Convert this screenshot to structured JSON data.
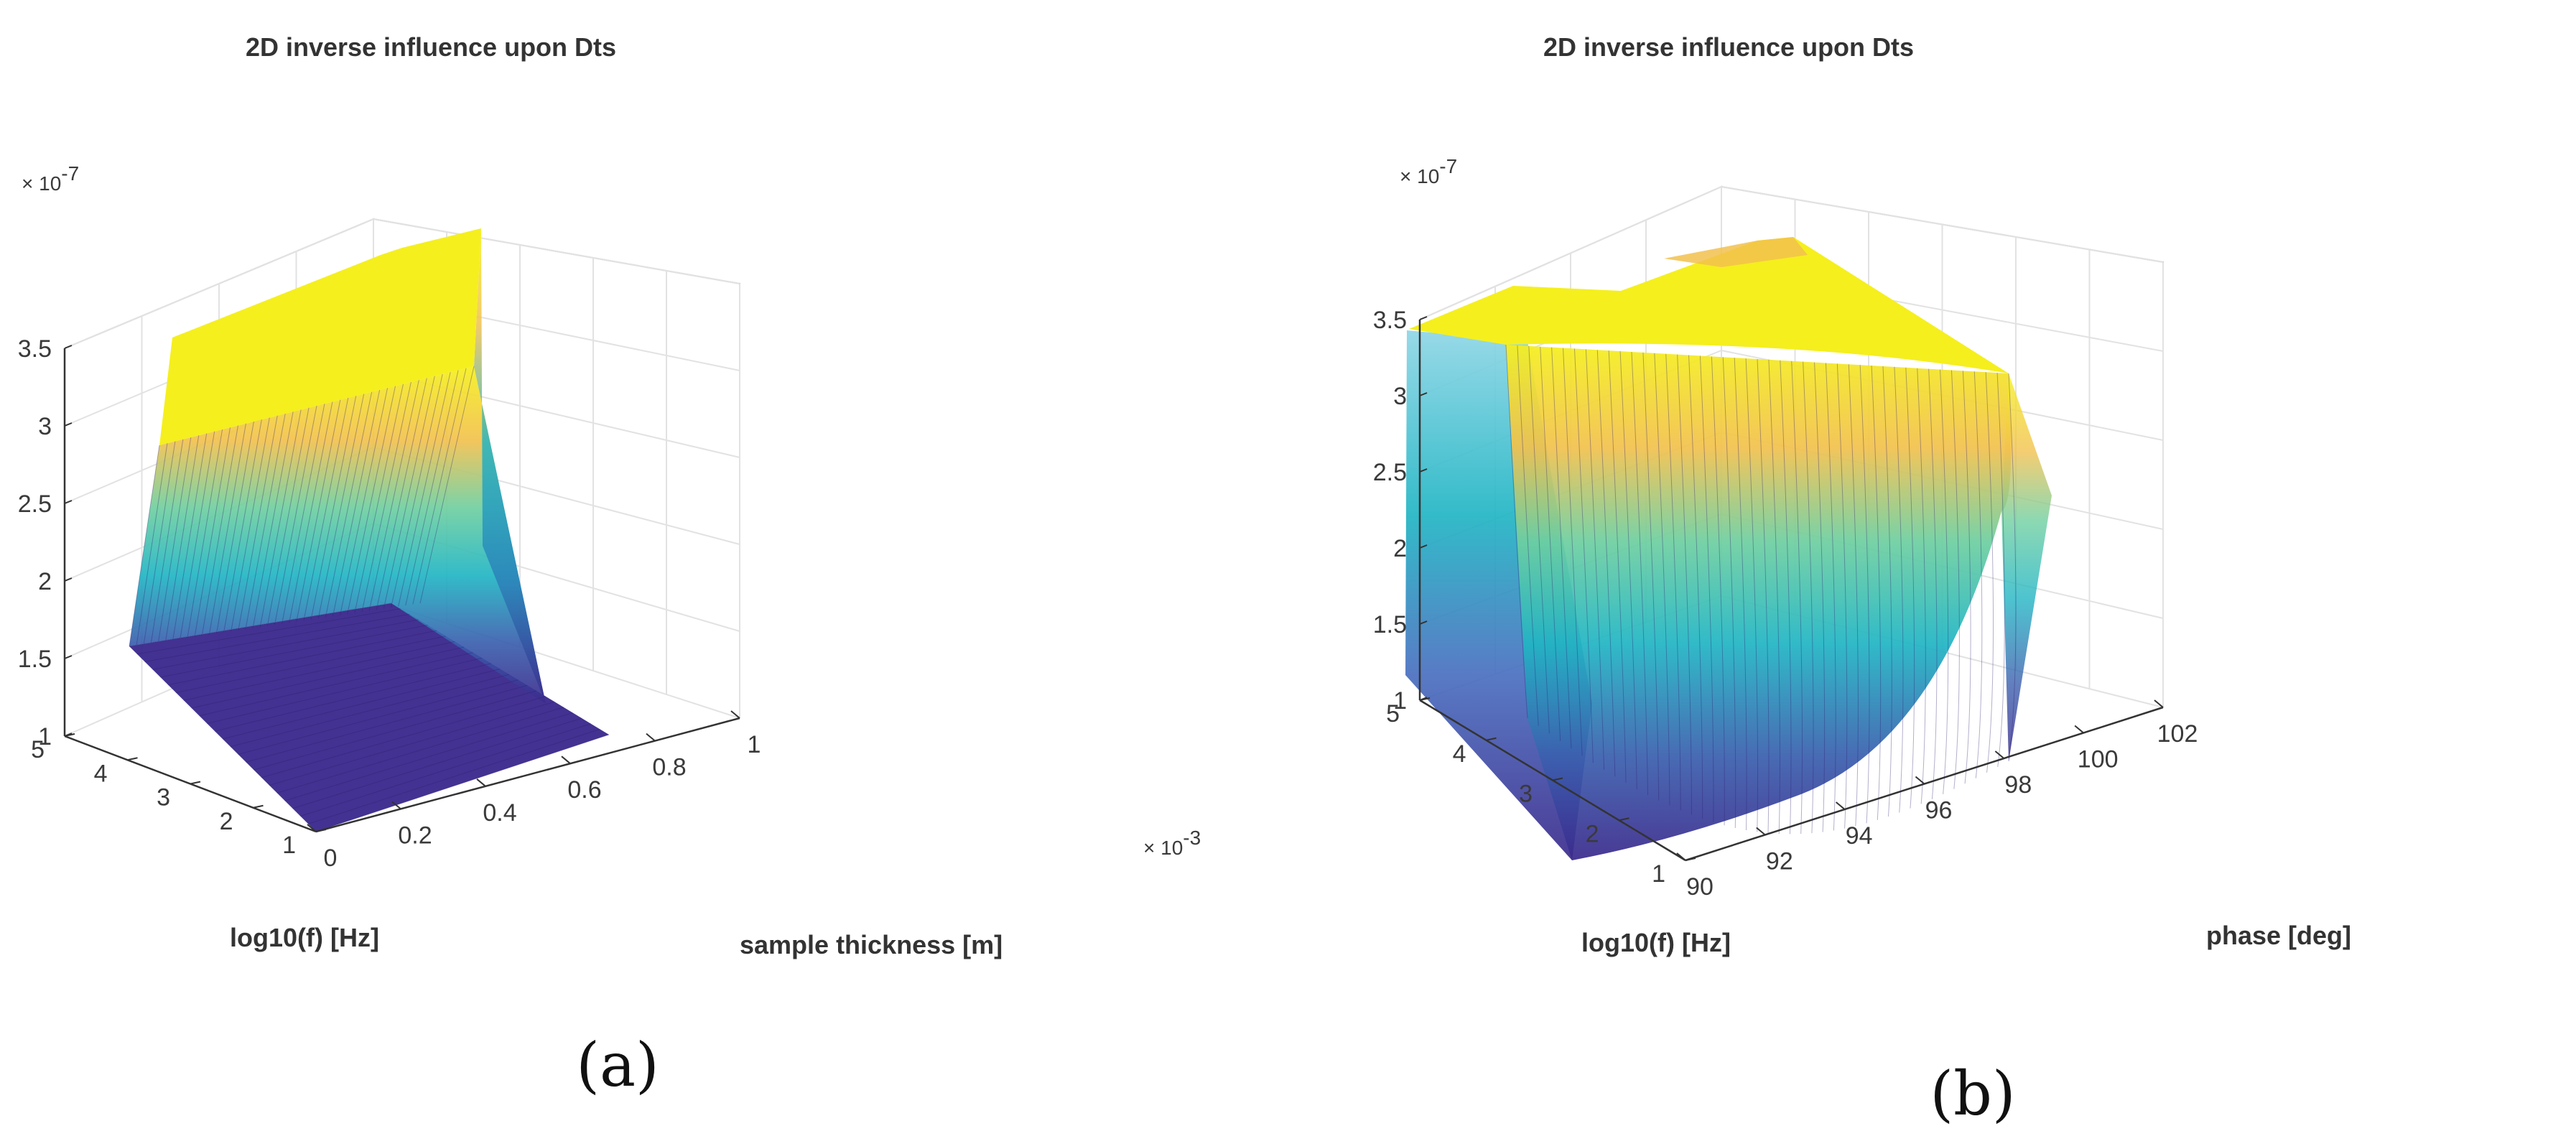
{
  "chart_data": [
    {
      "type": "surface",
      "panel_label": "(a)",
      "title": "2D inverse influence upon Dts",
      "xlabel": "sample thickness [m]",
      "ylabel": "log10(f) [Hz]",
      "zlabel": "",
      "x_multiplier": "× 10",
      "x_exponent": "-3",
      "z_multiplier": "× 10",
      "z_exponent": "-7",
      "xlim": [
        0,
        1
      ],
      "ylim": [
        1,
        5
      ],
      "zlim": [
        1,
        3.5
      ],
      "x_ticks": [
        "0",
        "0.2",
        "0.4",
        "0.6",
        "0.8",
        "1"
      ],
      "x_tick_values": [
        0,
        0.2,
        0.4,
        0.6,
        0.8,
        1
      ],
      "y_ticks": [
        "1",
        "2",
        "3",
        "4",
        "5"
      ],
      "y_tick_values": [
        1,
        2,
        3,
        4,
        5
      ],
      "z_ticks": [
        "1",
        "1.5",
        "2",
        "2.5",
        "3",
        "3.5"
      ],
      "z_tick_values": [
        1,
        1.5,
        2,
        2.5,
        3,
        3.5
      ],
      "surface_summary": {
        "low_plateau_z": 1.0,
        "high_plateau_z": 3.35,
        "transition_log10f": [
          2.9,
          3.6
        ]
      },
      "colormap": [
        "#3b2a8c",
        "#2c7fb8",
        "#21b5c4",
        "#8fcf7a",
        "#f2c14e",
        "#f5ef1e"
      ],
      "grid": true
    },
    {
      "type": "surface",
      "panel_label": "(b)",
      "title": "2D inverse influence upon Dts",
      "xlabel": "phase [deg]",
      "ylabel": "log10(f) [Hz]",
      "zlabel": "",
      "z_multiplier": "× 10",
      "z_exponent": "-7",
      "xlim": [
        90,
        102
      ],
      "ylim": [
        1,
        5
      ],
      "zlim": [
        1,
        3.5
      ],
      "x_ticks": [
        "90",
        "92",
        "94",
        "96",
        "98",
        "100",
        "102"
      ],
      "x_tick_values": [
        90,
        92,
        94,
        96,
        98,
        100,
        102
      ],
      "y_ticks": [
        "1",
        "2",
        "3",
        "4",
        "5"
      ],
      "y_tick_values": [
        1,
        2,
        3,
        4,
        5
      ],
      "z_ticks": [
        "1",
        "1.5",
        "2",
        "2.5",
        "3",
        "3.5"
      ],
      "z_tick_values": [
        1,
        1.5,
        2,
        2.5,
        3,
        3.5
      ],
      "surface_summary": {
        "low_edge_z": 1.0,
        "high_plateau_z": 3.2,
        "far_edge_min_z": 2.0
      },
      "colormap": [
        "#3b2a8c",
        "#2c7fb8",
        "#21b5c4",
        "#8fcf7a",
        "#f2c14e",
        "#f5ef1e"
      ],
      "grid": true
    }
  ]
}
